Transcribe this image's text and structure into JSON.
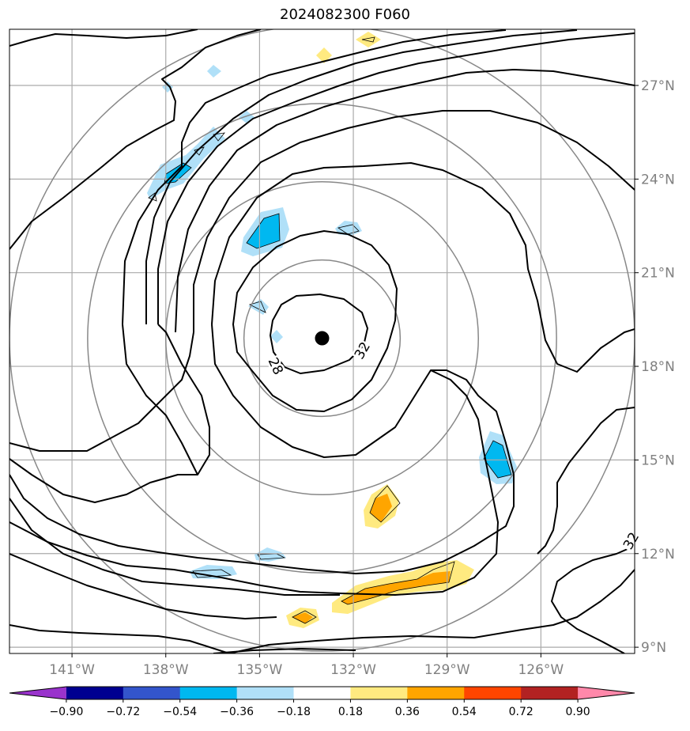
{
  "title": "2024082300 F060",
  "map": {
    "lon_range": [
      -143,
      -123
    ],
    "lat_range": [
      8.8,
      28.8
    ],
    "lon_ticks": [
      {
        "v": -141,
        "label": "141°W"
      },
      {
        "v": -138,
        "label": "138°W"
      },
      {
        "v": -135,
        "label": "135°W"
      },
      {
        "v": -132,
        "label": "132°W"
      },
      {
        "v": -129,
        "label": "129°W"
      },
      {
        "v": -126,
        "label": "126°W"
      }
    ],
    "lat_ticks": [
      {
        "v": 27,
        "label": "27°N"
      },
      {
        "v": 24,
        "label": "24°N"
      },
      {
        "v": 21,
        "label": "21°N"
      },
      {
        "v": 18,
        "label": "18°N"
      },
      {
        "v": 15,
        "label": "15°N"
      },
      {
        "v": 12,
        "label": "12°N"
      },
      {
        "v": 9,
        "label": "9°N"
      }
    ],
    "storm_center": {
      "lon": -133,
      "lat": 18.9
    },
    "range_rings_deg": [
      2.5,
      5,
      7.5,
      10
    ],
    "contour_labels": [
      {
        "text": "32",
        "lon": -131.7,
        "lat": 18.5
      },
      {
        "text": "28",
        "lon": -134.5,
        "lat": 18.0
      },
      {
        "text": "32",
        "lon": -123.1,
        "lat": 12.4
      }
    ]
  },
  "colorbar": {
    "colors": [
      "#9933cc",
      "#000090",
      "#3355cc",
      "#00b8f0",
      "#b0e0f8",
      "#ffffff",
      "#ffea80",
      "#ffa500",
      "#ff4500",
      "#b22222",
      "#ff88aa"
    ],
    "tick_labels": [
      "−0.90",
      "−0.72",
      "−0.54",
      "−0.36",
      "−0.18",
      "0.18",
      "0.36",
      "0.54",
      "0.72",
      "0.90"
    ]
  },
  "colors": {
    "grid": "#aaaaaa",
    "ring": "#888888",
    "tick_label": "#808080"
  }
}
